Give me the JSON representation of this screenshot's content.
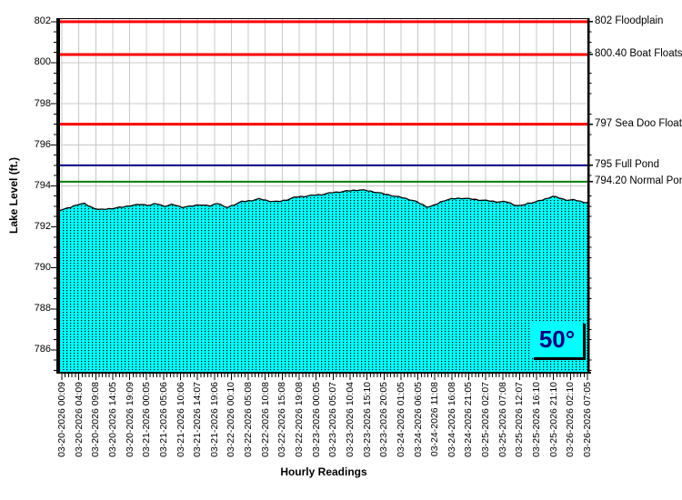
{
  "chart_data": {
    "type": "area",
    "x_axis": {
      "title": "Hourly Readings",
      "labels": [
        "03-20-2026 00:09",
        "03-20-2026 04:09",
        "03-20-2026 09:08",
        "03-20-2026 14:05",
        "03-20-2026 19:09",
        "03-21-2026 00:05",
        "03-21-2026 05:06",
        "03-21-2026 10:06",
        "03-21-2026 14:07",
        "03-21-2026 19:06",
        "03-22-2026 00:10",
        "03-22-2026 05:08",
        "03-22-2026 10:08",
        "03-22-2026 15:08",
        "03-22-2026 19:08",
        "03-23-2026 00:05",
        "03-23-2026 05:07",
        "03-23-2026 10:04",
        "03-23-2026 15:10",
        "03-23-2026 20:05",
        "03-24-2026 01:05",
        "03-24-2026 06:05",
        "03-24-2026 11:08",
        "03-24-2026 16:08",
        "03-24-2026 21:05",
        "03-25-2026 02:07",
        "03-25-2026 07:08",
        "03-25-2026 12:07",
        "03-25-2026 16:10",
        "03-25-2026 21:10",
        "03-26-2026 02:10",
        "03-26-2026 07:05"
      ]
    },
    "y_axis": {
      "title": "Lake Level (ft.)",
      "ticks": [
        786,
        788,
        790,
        792,
        794,
        796,
        798,
        800,
        802
      ],
      "minor_tick_step": 0.5
    },
    "ylim": [
      784.89,
      802.17
    ],
    "grid": true,
    "series_name": "Lake Level",
    "readings_count": 152,
    "points": [
      [
        0.002,
        792.83
      ],
      [
        0.016,
        792.91
      ],
      [
        0.033,
        793.09
      ],
      [
        0.045,
        793.14
      ],
      [
        0.059,
        792.96
      ],
      [
        0.076,
        792.83
      ],
      [
        0.09,
        792.87
      ],
      [
        0.102,
        792.91
      ],
      [
        0.119,
        792.96
      ],
      [
        0.136,
        793.05
      ],
      [
        0.153,
        793.09
      ],
      [
        0.171,
        793.05
      ],
      [
        0.183,
        793.14
      ],
      [
        0.197,
        793.0
      ],
      [
        0.214,
        793.09
      ],
      [
        0.231,
        792.96
      ],
      [
        0.248,
        793.0
      ],
      [
        0.266,
        793.09
      ],
      [
        0.283,
        793.0
      ],
      [
        0.3,
        793.18
      ],
      [
        0.314,
        792.91
      ],
      [
        0.331,
        793.09
      ],
      [
        0.343,
        793.22
      ],
      [
        0.36,
        793.27
      ],
      [
        0.378,
        793.36
      ],
      [
        0.395,
        793.27
      ],
      [
        0.412,
        793.22
      ],
      [
        0.429,
        793.31
      ],
      [
        0.447,
        793.45
      ],
      [
        0.464,
        793.49
      ],
      [
        0.481,
        793.54
      ],
      [
        0.498,
        793.58
      ],
      [
        0.516,
        793.67
      ],
      [
        0.533,
        793.71
      ],
      [
        0.55,
        793.76
      ],
      [
        0.567,
        793.8
      ],
      [
        0.584,
        793.76
      ],
      [
        0.602,
        793.67
      ],
      [
        0.619,
        793.58
      ],
      [
        0.636,
        793.49
      ],
      [
        0.653,
        793.4
      ],
      [
        0.671,
        793.27
      ],
      [
        0.683,
        793.14
      ],
      [
        0.697,
        792.96
      ],
      [
        0.71,
        793.05
      ],
      [
        0.726,
        793.27
      ],
      [
        0.743,
        793.36
      ],
      [
        0.76,
        793.4
      ],
      [
        0.778,
        793.36
      ],
      [
        0.795,
        793.31
      ],
      [
        0.812,
        793.27
      ],
      [
        0.829,
        793.22
      ],
      [
        0.847,
        793.22
      ],
      [
        0.86,
        793.09
      ],
      [
        0.872,
        793.0
      ],
      [
        0.886,
        793.14
      ],
      [
        0.903,
        793.22
      ],
      [
        0.921,
        793.36
      ],
      [
        0.934,
        793.49
      ],
      [
        0.947,
        793.4
      ],
      [
        0.959,
        793.31
      ],
      [
        0.976,
        793.31
      ],
      [
        0.99,
        793.22
      ],
      [
        1.0,
        793.18
      ]
    ],
    "reference_lines": [
      {
        "value": 802.0,
        "label": "802 Floodplain",
        "color": "#FF0000",
        "width": 3
      },
      {
        "value": 800.4,
        "label": "800.40 Boat Floats",
        "color": "#FF0000",
        "width": 3
      },
      {
        "value": 797.0,
        "label": "797 Sea Doo Floats",
        "color": "#FF0000",
        "width": 3
      },
      {
        "value": 795.0,
        "label": "795 Full Pond",
        "color": "#000080",
        "width": 2
      },
      {
        "value": 794.2,
        "label": "794.20 Normal Pond",
        "color": "#008000",
        "width": 2
      }
    ],
    "temperature": {
      "value": "50°",
      "color": "#000080",
      "background": "#00FFFF"
    },
    "colors": {
      "area_fill": "#00FFFF",
      "area_dot": "#000000",
      "series_line": "#000000",
      "grid": "#C8C8C8",
      "axis": "#000000",
      "background": "#FFFFFF"
    },
    "render": {
      "jitter_ft": 0.025
    }
  }
}
